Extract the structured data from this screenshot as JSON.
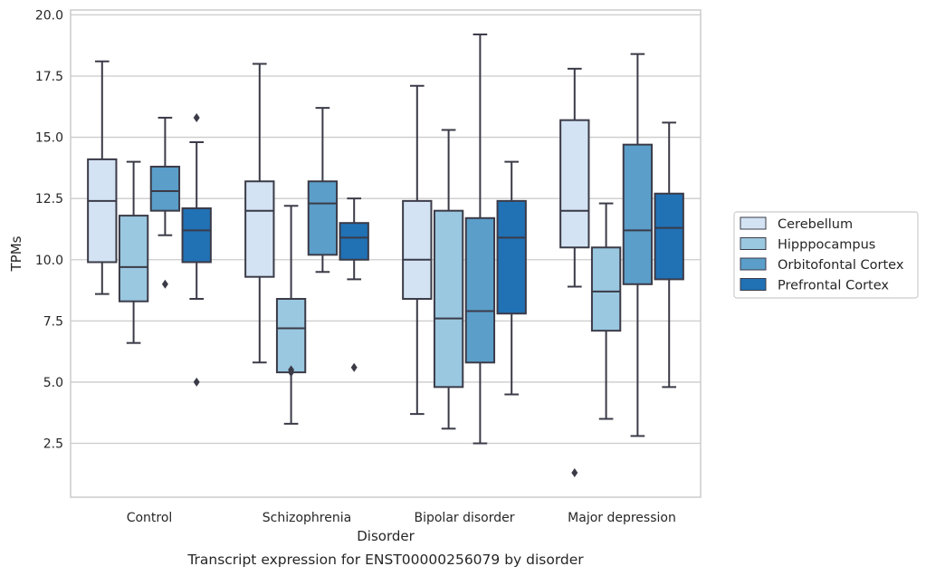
{
  "chart_data": {
    "type": "box",
    "title": "",
    "caption": "Transcript expression for ENST00000256079 by disorder",
    "xlabel": "Disorder",
    "ylabel": "TPMs",
    "ylim": [
      0.3,
      20.2
    ],
    "yticks": [
      2.5,
      5.0,
      7.5,
      10.0,
      12.5,
      15.0,
      17.5,
      20.0
    ],
    "ytick_labels": [
      "2.5",
      "5.0",
      "7.5",
      "10.0",
      "12.5",
      "15.0",
      "17.5",
      "20.0"
    ],
    "grid": "horizontal",
    "legend_position": "right",
    "categories": [
      "Control",
      "Schizophrenia",
      "Bipolar disorder",
      "Major depression"
    ],
    "series": [
      {
        "name": "Cerebellum",
        "color": "#d3e3f3",
        "boxes": [
          {
            "whislo": 8.6,
            "q1": 9.9,
            "med": 12.4,
            "q3": 14.1,
            "whishi": 18.1,
            "fliers": []
          },
          {
            "whislo": 5.8,
            "q1": 9.3,
            "med": 12.0,
            "q3": 13.2,
            "whishi": 18.0,
            "fliers": []
          },
          {
            "whislo": 3.7,
            "q1": 8.4,
            "med": 10.0,
            "q3": 12.4,
            "whishi": 17.1,
            "fliers": []
          },
          {
            "whislo": 8.9,
            "q1": 10.5,
            "med": 12.0,
            "q3": 15.7,
            "whishi": 17.8,
            "fliers": [
              1.3
            ]
          }
        ]
      },
      {
        "name": "Hipppocampus",
        "color": "#9ac8e0",
        "boxes": [
          {
            "whislo": 6.6,
            "q1": 8.3,
            "med": 9.7,
            "q3": 11.8,
            "whishi": 14.0,
            "fliers": []
          },
          {
            "whislo": 3.3,
            "q1": 5.4,
            "med": 7.2,
            "q3": 8.4,
            "whishi": 12.2,
            "fliers": [
              5.4,
              5.5
            ]
          },
          {
            "whislo": 3.1,
            "q1": 4.8,
            "med": 7.6,
            "q3": 12.0,
            "whishi": 15.3,
            "fliers": []
          },
          {
            "whislo": 3.5,
            "q1": 7.1,
            "med": 8.7,
            "q3": 10.5,
            "whishi": 12.3,
            "fliers": []
          }
        ]
      },
      {
        "name": "Orbitofontal Cortex",
        "color": "#5a9ec9",
        "boxes": [
          {
            "whislo": 11.0,
            "q1": 12.0,
            "med": 12.8,
            "q3": 13.8,
            "whishi": 15.8,
            "fliers": [
              9.0
            ]
          },
          {
            "whislo": 9.5,
            "q1": 10.2,
            "med": 12.3,
            "q3": 13.2,
            "whishi": 16.2,
            "fliers": []
          },
          {
            "whislo": 2.5,
            "q1": 5.8,
            "med": 7.9,
            "q3": 11.7,
            "whishi": 19.2,
            "fliers": []
          },
          {
            "whislo": 2.8,
            "q1": 9.0,
            "med": 11.2,
            "q3": 14.7,
            "whishi": 18.4,
            "fliers": []
          }
        ]
      },
      {
        "name": "Prefrontal Cortex",
        "color": "#2171b5",
        "boxes": [
          {
            "whislo": 8.4,
            "q1": 9.9,
            "med": 11.2,
            "q3": 12.1,
            "whishi": 14.8,
            "fliers": [
              15.8,
              5.0
            ]
          },
          {
            "whislo": 9.2,
            "q1": 10.0,
            "med": 10.9,
            "q3": 11.5,
            "whishi": 12.5,
            "fliers": [
              5.6
            ]
          },
          {
            "whislo": 4.5,
            "q1": 7.8,
            "med": 10.9,
            "q3": 12.4,
            "whishi": 14.0,
            "fliers": []
          },
          {
            "whislo": 4.8,
            "q1": 9.2,
            "med": 11.3,
            "q3": 12.7,
            "whishi": 15.6,
            "fliers": []
          }
        ]
      }
    ]
  }
}
